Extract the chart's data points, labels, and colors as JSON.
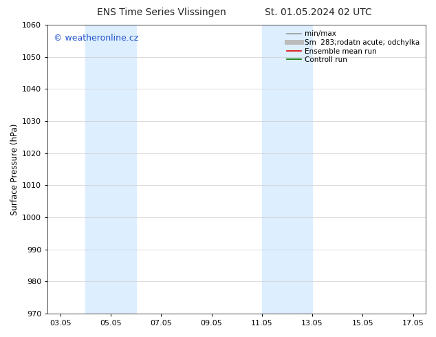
{
  "title_left": "ENS Time Series Vlissingen",
  "title_right": "St. 01.05.2024 02 UTC",
  "ylabel": "Surface Pressure (hPa)",
  "ylim": [
    970,
    1060
  ],
  "yticks": [
    970,
    980,
    990,
    1000,
    1010,
    1020,
    1030,
    1040,
    1050,
    1060
  ],
  "xlim_start": 2.5,
  "xlim_end": 17.5,
  "xtick_labels": [
    "03.05",
    "05.05",
    "07.05",
    "09.05",
    "11.05",
    "13.05",
    "15.05",
    "17.05"
  ],
  "xtick_positions": [
    3.0,
    5.0,
    7.0,
    9.0,
    11.0,
    13.0,
    15.0,
    17.0
  ],
  "shade_bands": [
    {
      "x_start": 4.0,
      "x_end": 6.0
    },
    {
      "x_start": 11.0,
      "x_end": 13.0
    }
  ],
  "shade_color": "#ddeeff",
  "watermark_text": "© weatheronline.cz",
  "watermark_color": "#2255cc",
  "legend_entries": [
    {
      "label": "min/max",
      "color": "#999999",
      "lw": 1.2,
      "style": "-"
    },
    {
      "label": "Sm  283;rodatn acute; odchylka",
      "color": "#bbbbbb",
      "lw": 5,
      "style": "-"
    },
    {
      "label": "Ensemble mean run",
      "color": "#dd0000",
      "lw": 1.2,
      "style": "-"
    },
    {
      "label": "Controll run",
      "color": "#007700",
      "lw": 1.2,
      "style": "-"
    }
  ],
  "bg_color": "#ffffff",
  "grid_color": "#cccccc",
  "title_fontsize": 10,
  "axis_label_fontsize": 8.5,
  "tick_fontsize": 8,
  "legend_fontsize": 7.5,
  "watermark_fontsize": 9
}
